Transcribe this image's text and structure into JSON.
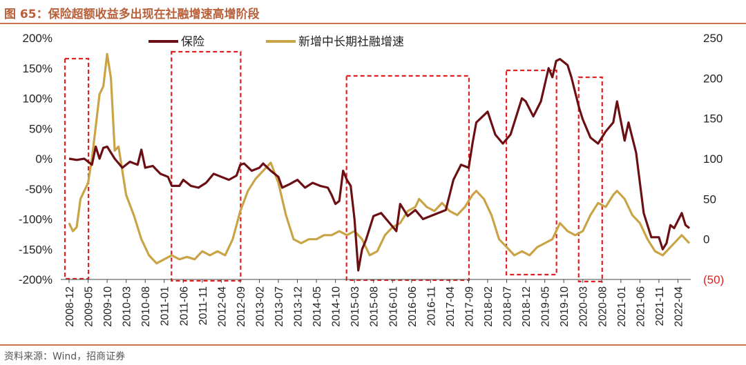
{
  "figure_title": "图 65：保险超额收益多出现在社融增速高增阶段",
  "source": "资料来源：Wind，招商证券",
  "colors": {
    "insurance": "#6b0f14",
    "credit": "#c9a446",
    "highlight": "#e02020",
    "neg_label": "#e02020"
  },
  "chart_data": {
    "type": "line",
    "title": "",
    "legend": [
      "保险",
      "新增中长期社融增速"
    ],
    "legend_position": "top",
    "grid": false,
    "y_left": {
      "ticks": [
        "200%",
        "150%",
        "100%",
        "50%",
        "0%",
        "-50%",
        "-100%",
        "-150%",
        "-200%"
      ],
      "range": [
        -200,
        200
      ]
    },
    "y_right": {
      "ticks": [
        "250",
        "200",
        "150",
        "100",
        "50",
        "0",
        "(50)"
      ],
      "range": [
        -50,
        250
      ]
    },
    "x_tick_labels": [
      "2008-12",
      "2009-05",
      "2009-10",
      "2010-03",
      "2010-08",
      "2011-01",
      "2011-06",
      "2011-11",
      "2012-04",
      "2012-09",
      "2013-02",
      "2013-07",
      "2013-12",
      "2014-05",
      "2014-10",
      "2015-03",
      "2015-08",
      "2016-01",
      "2016-06",
      "2016-11",
      "2017-04",
      "2017-09",
      "2018-02",
      "2018-07",
      "2018-12",
      "2019-05",
      "2019-10",
      "2020-03",
      "2020-08",
      "2021-01",
      "2021-06",
      "2021-11",
      "2022-04"
    ],
    "highlight_periods": [
      [
        "2008-12",
        "2009-04"
      ],
      [
        "2011-04",
        "2012-08"
      ],
      [
        "2015-02",
        "2017-08"
      ],
      [
        "2018-08",
        "2019-07"
      ],
      [
        "2020-03",
        "2020-07"
      ]
    ],
    "series": [
      {
        "name": "保险",
        "axis": "left",
        "points": [
          [
            "2008-12",
            0
          ],
          [
            "2009-02",
            -2
          ],
          [
            "2009-04",
            0
          ],
          [
            "2009-06",
            -10
          ],
          [
            "2009-07",
            20
          ],
          [
            "2009-08",
            0
          ],
          [
            "2009-09",
            18
          ],
          [
            "2009-10",
            20
          ],
          [
            "2009-12",
            0
          ],
          [
            "2010-02",
            -15
          ],
          [
            "2010-04",
            -5
          ],
          [
            "2010-06",
            -10
          ],
          [
            "2010-07",
            15
          ],
          [
            "2010-08",
            -15
          ],
          [
            "2010-10",
            -12
          ],
          [
            "2010-12",
            -25
          ],
          [
            "2011-02",
            -30
          ],
          [
            "2011-03",
            -45
          ],
          [
            "2011-05",
            -45
          ],
          [
            "2011-06",
            -35
          ],
          [
            "2011-08",
            -45
          ],
          [
            "2011-10",
            -48
          ],
          [
            "2011-12",
            -40
          ],
          [
            "2012-02",
            -25
          ],
          [
            "2012-04",
            -30
          ],
          [
            "2012-06",
            -35
          ],
          [
            "2012-08",
            -28
          ],
          [
            "2012-09",
            -10
          ],
          [
            "2012-10",
            -8
          ],
          [
            "2012-12",
            -20
          ],
          [
            "2013-02",
            -15
          ],
          [
            "2013-03",
            -8
          ],
          [
            "2013-05",
            -20
          ],
          [
            "2013-07",
            -30
          ],
          [
            "2013-08",
            -48
          ],
          [
            "2013-10",
            -42
          ],
          [
            "2013-12",
            -35
          ],
          [
            "2014-02",
            -48
          ],
          [
            "2014-04",
            -40
          ],
          [
            "2014-06",
            -45
          ],
          [
            "2014-08",
            -48
          ],
          [
            "2014-09",
            -60
          ],
          [
            "2014-10",
            -75
          ],
          [
            "2014-11",
            -70
          ],
          [
            "2014-12",
            -20
          ],
          [
            "2015-01",
            -35
          ],
          [
            "2015-02",
            -45
          ],
          [
            "2015-03",
            -100
          ],
          [
            "2015-04",
            -185
          ],
          [
            "2015-05",
            -150
          ],
          [
            "2015-06",
            -135
          ],
          [
            "2015-08",
            -95
          ],
          [
            "2015-10",
            -90
          ],
          [
            "2015-12",
            -105
          ],
          [
            "2016-02",
            -120
          ],
          [
            "2016-03",
            -75
          ],
          [
            "2016-05",
            -95
          ],
          [
            "2016-07",
            -85
          ],
          [
            "2016-09",
            -100
          ],
          [
            "2016-11",
            -95
          ],
          [
            "2017-01",
            -90
          ],
          [
            "2017-03",
            -85
          ],
          [
            "2017-05",
            -35
          ],
          [
            "2017-07",
            -10
          ],
          [
            "2017-09",
            -15
          ],
          [
            "2017-10",
            25
          ],
          [
            "2017-11",
            60
          ],
          [
            "2018-02",
            78
          ],
          [
            "2018-04",
            40
          ],
          [
            "2018-06",
            25
          ],
          [
            "2018-08",
            40
          ],
          [
            "2018-09",
            60
          ],
          [
            "2018-11",
            100
          ],
          [
            "2018-12",
            95
          ],
          [
            "2019-02",
            70
          ],
          [
            "2019-04",
            95
          ],
          [
            "2019-06",
            150
          ],
          [
            "2019-07",
            135
          ],
          [
            "2019-08",
            162
          ],
          [
            "2019-09",
            165
          ],
          [
            "2019-11",
            155
          ],
          [
            "2019-12",
            135
          ],
          [
            "2020-02",
            85
          ],
          [
            "2020-03",
            65
          ],
          [
            "2020-05",
            35
          ],
          [
            "2020-07",
            25
          ],
          [
            "2020-09",
            45
          ],
          [
            "2020-11",
            60
          ],
          [
            "2020-12",
            95
          ],
          [
            "2021-02",
            30
          ],
          [
            "2021-03",
            60
          ],
          [
            "2021-05",
            10
          ],
          [
            "2021-07",
            -90
          ],
          [
            "2021-09",
            -130
          ],
          [
            "2021-11",
            -130
          ],
          [
            "2021-12",
            -150
          ],
          [
            "2022-01",
            -140
          ],
          [
            "2022-02",
            -110
          ],
          [
            "2022-03",
            -115
          ],
          [
            "2022-05",
            -90
          ],
          [
            "2022-06",
            -110
          ],
          [
            "2022-07",
            -115
          ]
        ]
      },
      {
        "name": "新增中长期社融增速",
        "axis": "right",
        "points": [
          [
            "2008-12",
            20
          ],
          [
            "2009-01",
            10
          ],
          [
            "2009-02",
            15
          ],
          [
            "2009-03",
            50
          ],
          [
            "2009-05",
            70
          ],
          [
            "2009-06",
            100
          ],
          [
            "2009-08",
            180
          ],
          [
            "2009-09",
            190
          ],
          [
            "2009-10",
            230
          ],
          [
            "2009-11",
            200
          ],
          [
            "2009-12",
            110
          ],
          [
            "2010-01",
            115
          ],
          [
            "2010-03",
            55
          ],
          [
            "2010-05",
            30
          ],
          [
            "2010-07",
            0
          ],
          [
            "2010-09",
            -20
          ],
          [
            "2010-11",
            -30
          ],
          [
            "2011-01",
            -25
          ],
          [
            "2011-03",
            -20
          ],
          [
            "2011-05",
            -25
          ],
          [
            "2011-07",
            -22
          ],
          [
            "2011-09",
            -25
          ],
          [
            "2011-11",
            -15
          ],
          [
            "2012-01",
            -20
          ],
          [
            "2012-03",
            -15
          ],
          [
            "2012-05",
            -20
          ],
          [
            "2012-07",
            0
          ],
          [
            "2012-09",
            35
          ],
          [
            "2012-11",
            60
          ],
          [
            "2013-01",
            75
          ],
          [
            "2013-03",
            85
          ],
          [
            "2013-05",
            95
          ],
          [
            "2013-07",
            70
          ],
          [
            "2013-09",
            30
          ],
          [
            "2013-11",
            0
          ],
          [
            "2014-01",
            -5
          ],
          [
            "2014-03",
            0
          ],
          [
            "2014-05",
            0
          ],
          [
            "2014-07",
            5
          ],
          [
            "2014-09",
            5
          ],
          [
            "2014-11",
            10
          ],
          [
            "2015-01",
            5
          ],
          [
            "2015-03",
            10
          ],
          [
            "2015-05",
            0
          ],
          [
            "2015-07",
            -20
          ],
          [
            "2015-09",
            -15
          ],
          [
            "2015-11",
            5
          ],
          [
            "2016-01",
            15
          ],
          [
            "2016-03",
            20
          ],
          [
            "2016-05",
            35
          ],
          [
            "2016-07",
            40
          ],
          [
            "2016-08",
            50
          ],
          [
            "2016-10",
            40
          ],
          [
            "2016-12",
            35
          ],
          [
            "2017-02",
            45
          ],
          [
            "2017-04",
            35
          ],
          [
            "2017-06",
            30
          ],
          [
            "2017-08",
            40
          ],
          [
            "2017-10",
            55
          ],
          [
            "2017-11",
            60
          ],
          [
            "2018-01",
            50
          ],
          [
            "2018-03",
            30
          ],
          [
            "2018-05",
            0
          ],
          [
            "2018-07",
            -10
          ],
          [
            "2018-09",
            -20
          ],
          [
            "2018-11",
            -15
          ],
          [
            "2019-01",
            -20
          ],
          [
            "2019-03",
            -10
          ],
          [
            "2019-05",
            -5
          ],
          [
            "2019-07",
            0
          ],
          [
            "2019-09",
            20
          ],
          [
            "2019-11",
            10
          ],
          [
            "2020-01",
            5
          ],
          [
            "2020-03",
            10
          ],
          [
            "2020-05",
            30
          ],
          [
            "2020-07",
            45
          ],
          [
            "2020-09",
            40
          ],
          [
            "2020-11",
            55
          ],
          [
            "2020-12",
            60
          ],
          [
            "2021-02",
            50
          ],
          [
            "2021-04",
            30
          ],
          [
            "2021-06",
            20
          ],
          [
            "2021-08",
            0
          ],
          [
            "2021-10",
            -15
          ],
          [
            "2021-12",
            -20
          ],
          [
            "2022-02",
            -10
          ],
          [
            "2022-04",
            0
          ],
          [
            "2022-05",
            5
          ],
          [
            "2022-06",
            0
          ],
          [
            "2022-07",
            -5
          ]
        ]
      }
    ]
  }
}
